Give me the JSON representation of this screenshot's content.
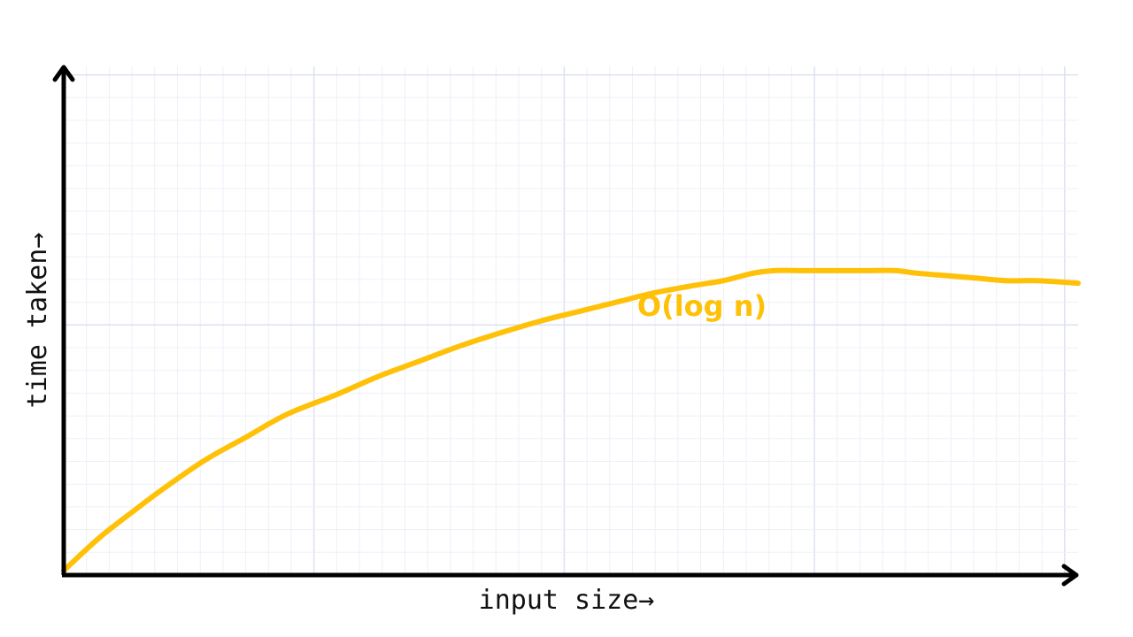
{
  "chart_data": {
    "type": "line",
    "title": "",
    "xlabel": "input size→",
    "ylabel": "time taken→",
    "grid": true,
    "legend": "none",
    "colors": {
      "series": "#FFC107",
      "axis": "#000000",
      "grid_minor": "#EEF0F8",
      "grid_major": "#DDE1F2"
    },
    "xlim": [
      0,
      1
    ],
    "ylim": [
      0,
      1
    ],
    "series": [
      {
        "label": "O(log n)",
        "x": [
          0.0,
          0.035,
          0.07,
          0.1,
          0.14,
          0.18,
          0.22,
          0.27,
          0.31,
          0.35,
          0.39,
          0.42,
          0.47,
          0.51,
          0.55,
          0.58,
          0.62,
          0.65,
          0.68,
          0.7,
          0.73,
          0.76,
          0.79,
          0.82,
          0.84,
          0.87,
          0.9,
          0.93,
          0.96,
          1.0
        ],
        "y": [
          0.0,
          0.065,
          0.12,
          0.165,
          0.22,
          0.265,
          0.31,
          0.35,
          0.385,
          0.415,
          0.445,
          0.465,
          0.495,
          0.515,
          0.535,
          0.55,
          0.565,
          0.575,
          0.59,
          0.595,
          0.595,
          0.595,
          0.595,
          0.595,
          0.59,
          0.585,
          0.58,
          0.575,
          0.575,
          0.57
        ]
      }
    ]
  }
}
